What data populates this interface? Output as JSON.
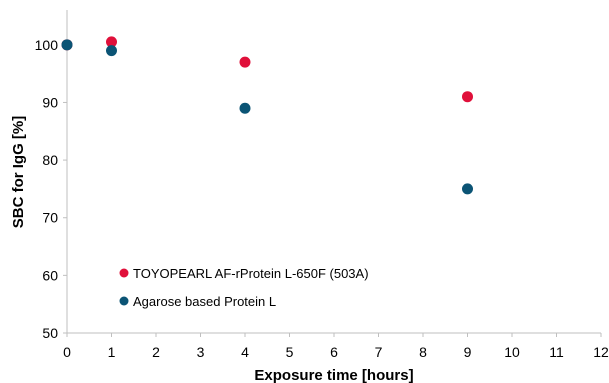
{
  "chart_data": {
    "type": "scatter",
    "title": "",
    "xlabel": "Exposure time [hours]",
    "ylabel": "SBC for IgG [%]",
    "xlim": [
      0,
      12
    ],
    "ylim": [
      50,
      105
    ],
    "x_ticks": [
      "0",
      "1",
      "2",
      "3",
      "4",
      "5",
      "6",
      "7",
      "8",
      "9",
      "10",
      "11",
      "12"
    ],
    "y_ticks": [
      "50",
      "60",
      "70",
      "80",
      "90",
      "100"
    ],
    "grid": false,
    "legend_position": "bottom-left",
    "series": [
      {
        "name": "TOYOPEARL AF-rProtein L-650F (503A)",
        "color": "#e0103a",
        "points": [
          {
            "x": 0,
            "y": 100
          },
          {
            "x": 1,
            "y": 100.5
          },
          {
            "x": 4,
            "y": 97
          },
          {
            "x": 9,
            "y": 91
          }
        ]
      },
      {
        "name": "Agarose based Protein L",
        "color": "#0b5475",
        "points": [
          {
            "x": 0,
            "y": 100
          },
          {
            "x": 1,
            "y": 99
          },
          {
            "x": 4,
            "y": 89
          },
          {
            "x": 9,
            "y": 75
          }
        ]
      }
    ]
  }
}
